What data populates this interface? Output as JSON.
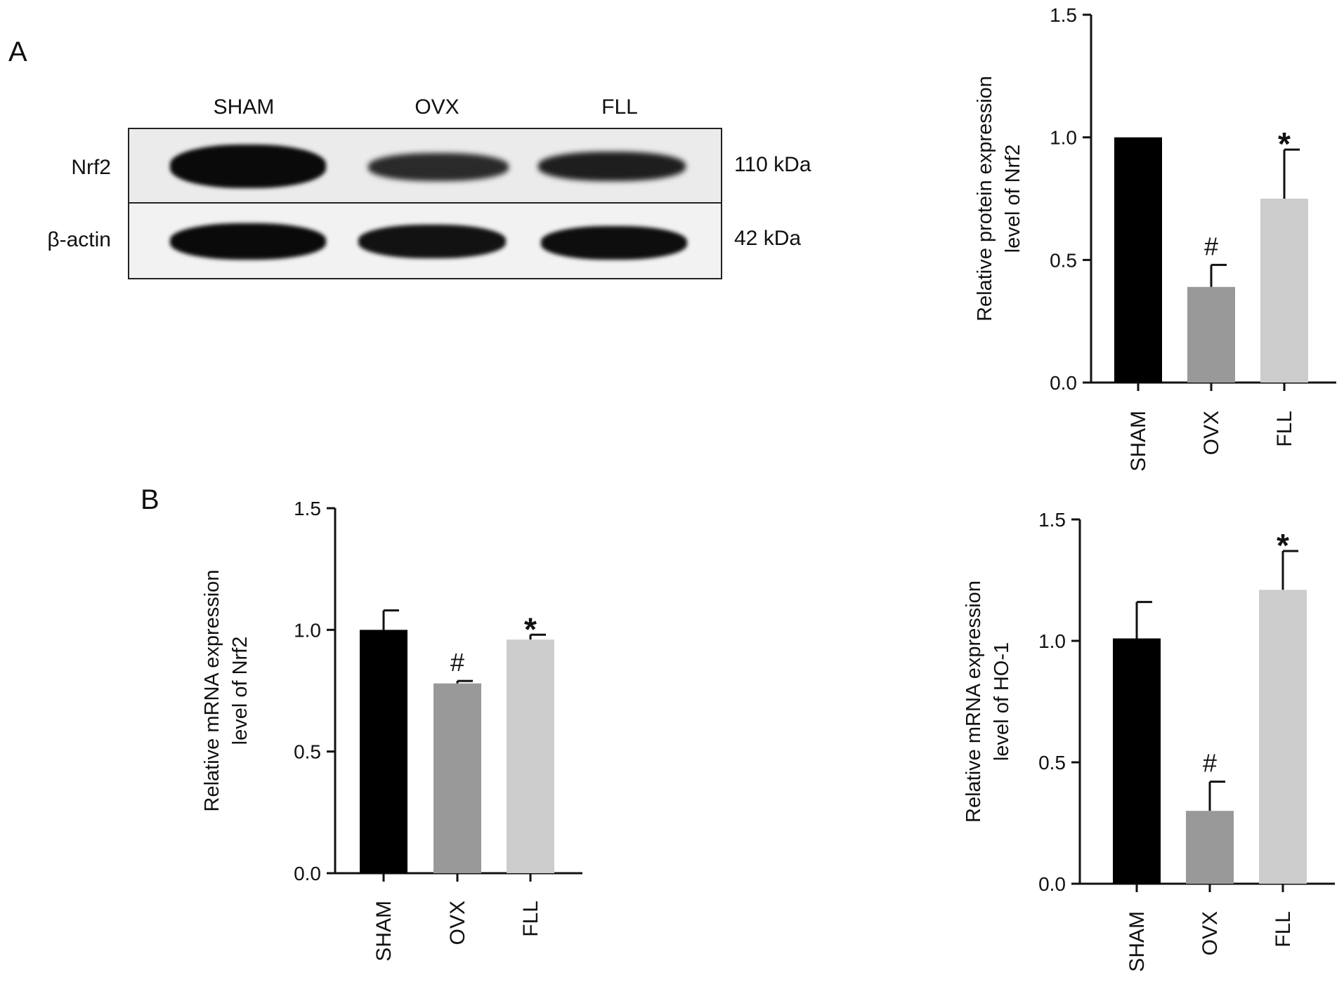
{
  "panels": {
    "a_label": "A",
    "b_label": "B"
  },
  "western_blot": {
    "lanes": [
      "SHAM",
      "OVX",
      "FLL"
    ],
    "rows": [
      {
        "label": "Nrf2",
        "size": "110 kDa",
        "intensities": [
          1.0,
          0.55,
          0.7
        ]
      },
      {
        "label": "β-actin",
        "size": "42 kDa",
        "intensities": [
          1.0,
          0.9,
          0.95
        ]
      }
    ]
  },
  "colors": {
    "SHAM": "#000000",
    "OVX": "#999999",
    "FLL": "#cccccc"
  },
  "chart_data": [
    {
      "type": "bar",
      "panel": "A",
      "categories": [
        "SHAM",
        "OVX",
        "FLL"
      ],
      "values": [
        1.0,
        0.39,
        0.75
      ],
      "errors": [
        0.0,
        0.09,
        0.2
      ],
      "annotations": [
        "",
        "#",
        "*"
      ],
      "ylabel": [
        "Relative protein expression",
        "level of Nrf2"
      ],
      "ylim": [
        0,
        1.5
      ],
      "yticks": [
        "0.0",
        "0.5",
        "1.0",
        "1.5"
      ]
    },
    {
      "type": "bar",
      "panel": "B",
      "categories": [
        "SHAM",
        "OVX",
        "FLL"
      ],
      "values": [
        1.0,
        0.78,
        0.96
      ],
      "errors": [
        0.08,
        0.01,
        0.02
      ],
      "annotations": [
        "",
        "#",
        "*"
      ],
      "ylabel": [
        "Relative mRNA expression",
        "level of Nrf2"
      ],
      "ylim": [
        0,
        1.5
      ],
      "yticks": [
        "0.0",
        "0.5",
        "1.0",
        "1.5"
      ]
    },
    {
      "type": "bar",
      "panel": "B",
      "categories": [
        "SHAM",
        "OVX",
        "FLL"
      ],
      "values": [
        1.01,
        0.3,
        1.21
      ],
      "errors": [
        0.15,
        0.12,
        0.16
      ],
      "annotations": [
        "",
        "#",
        "*"
      ],
      "ylabel": [
        "Relative mRNA expression",
        "level of HO-1"
      ],
      "ylim": [
        0,
        1.5
      ],
      "yticks": [
        "0.0",
        "0.5",
        "1.0",
        "1.5"
      ]
    }
  ]
}
